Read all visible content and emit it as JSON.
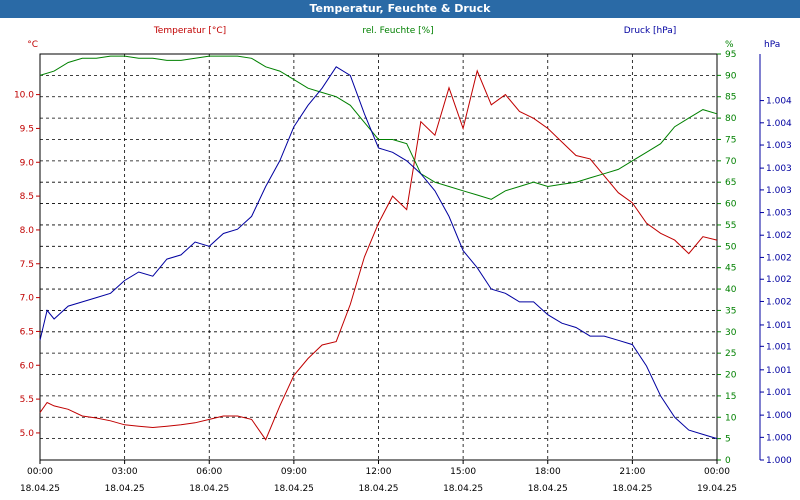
{
  "window": {
    "title": "Temperatur, Feuchte & Druck"
  },
  "chart_data": {
    "type": "line",
    "title": "Temperatur, Feuchte & Druck",
    "grid": true,
    "x_ticks": [
      {
        "time": "00:00",
        "date": "18.04.25"
      },
      {
        "time": "03:00",
        "date": "18.04.25"
      },
      {
        "time": "06:00",
        "date": "18.04.25"
      },
      {
        "time": "09:00",
        "date": "18.04.25"
      },
      {
        "time": "12:00",
        "date": "18.04.25"
      },
      {
        "time": "15:00",
        "date": "18.04.25"
      },
      {
        "time": "18:00",
        "date": "18.04.25"
      },
      {
        "time": "21:00",
        "date": "18.04.25"
      },
      {
        "time": "00:00",
        "date": "19.04.25"
      }
    ],
    "x_range_hours": [
      0,
      24
    ],
    "axes": {
      "temperature": {
        "label": "Temperatur [°C]",
        "unit": "°C",
        "color": "#c00000",
        "range": [
          4.6,
          10.6
        ],
        "ticks": [
          "5.0",
          "5.5",
          "6.0",
          "6.5",
          "7.0",
          "7.5",
          "8.0",
          "8.5",
          "9.0",
          "9.5",
          "10.0"
        ]
      },
      "humidity": {
        "label": "rel. Feuchte [%]",
        "unit": "%",
        "color": "#008000",
        "range": [
          0,
          95
        ],
        "ticks": [
          "0",
          "5",
          "10",
          "15",
          "20",
          "25",
          "30",
          "35",
          "40",
          "45",
          "50",
          "55",
          "60",
          "65",
          "70",
          "75",
          "80",
          "85",
          "90",
          "95"
        ]
      },
      "pressure": {
        "label": "Druck [hPa]",
        "unit": "hPa",
        "color": "#0000a0",
        "ticks": [
          "1.000",
          "1.000",
          "1.000",
          "1.001",
          "1.001",
          "1.001",
          "1.001",
          "1.002",
          "1.002",
          "1.002",
          "1.002",
          "1.003",
          "1.003",
          "1.003",
          "1.003",
          "1.004",
          "1.004"
        ]
      }
    },
    "series": [
      {
        "name": "Temperatur [°C]",
        "axis": "temperature",
        "color": "#c00000",
        "x": [
          0,
          0.25,
          0.5,
          1,
          1.5,
          2,
          2.5,
          3,
          3.5,
          4,
          4.5,
          5,
          5.5,
          6,
          6.5,
          7,
          7.5,
          8,
          8.5,
          9,
          9.5,
          10,
          10.5,
          11,
          11.5,
          12,
          12.5,
          13,
          13.5,
          14,
          14.5,
          15,
          15.5,
          16,
          16.5,
          17,
          17.5,
          18,
          18.5,
          19,
          19.5,
          20,
          20.5,
          21,
          21.5,
          22,
          22.5,
          23,
          23.5,
          24
        ],
        "values": [
          5.3,
          5.45,
          5.4,
          5.35,
          5.25,
          5.22,
          5.18,
          5.12,
          5.1,
          5.08,
          5.1,
          5.12,
          5.15,
          5.2,
          5.25,
          5.25,
          5.2,
          4.9,
          5.4,
          5.85,
          6.1,
          6.3,
          6.35,
          6.9,
          7.6,
          8.1,
          8.5,
          8.3,
          9.6,
          9.4,
          10.1,
          9.5,
          10.35,
          9.85,
          10.0,
          9.75,
          9.65,
          9.5,
          9.3,
          9.1,
          9.05,
          8.8,
          8.55,
          8.4,
          8.1,
          7.95,
          7.85,
          7.65,
          7.9,
          7.85
        ]
      },
      {
        "name": "rel. Feuchte [%]",
        "axis": "humidity",
        "color": "#008000",
        "x": [
          0,
          0.5,
          1,
          1.5,
          2,
          2.5,
          3,
          3.5,
          4,
          4.5,
          5,
          5.5,
          6,
          6.5,
          7,
          7.5,
          8,
          8.5,
          9,
          9.5,
          10,
          10.5,
          11,
          11.5,
          12,
          12.5,
          13,
          13.5,
          14,
          14.5,
          15,
          15.5,
          16,
          16.5,
          17,
          17.5,
          18,
          18.5,
          19,
          19.5,
          20,
          20.5,
          21,
          21.5,
          22,
          22.5,
          23,
          23.5,
          24
        ],
        "values": [
          90,
          91,
          93,
          94,
          94,
          94.5,
          94.5,
          94,
          94,
          93.5,
          93.5,
          94,
          94.5,
          94.5,
          94.5,
          94,
          92,
          91,
          89,
          87,
          86,
          85,
          83,
          79,
          75,
          75,
          74,
          67,
          65,
          64,
          63,
          62,
          61,
          63,
          64,
          65,
          64,
          64.5,
          65,
          66,
          67,
          68,
          70,
          72,
          74,
          78,
          80,
          82,
          81
        ]
      },
      {
        "name": "Druck [hPa]",
        "axis": "pressure",
        "tick_positions": [
          0,
          5.3,
          10.5,
          15.9,
          21.1,
          26.6,
          31.6,
          37.1,
          42.3,
          47.4,
          52.6,
          57.9,
          63.2,
          68.3,
          73.7,
          78.9,
          84.1
        ],
        "color": "#0000a0",
        "x": [
          0,
          0.25,
          0.5,
          1,
          1.5,
          2,
          2.5,
          3,
          3.5,
          4,
          4.5,
          5,
          5.5,
          6,
          6.5,
          7,
          7.5,
          8,
          8.5,
          9,
          9.5,
          10,
          10.5,
          11,
          11.5,
          12,
          12.5,
          13,
          13.5,
          14,
          14.5,
          15,
          15.5,
          16,
          16.5,
          17,
          17.5,
          18,
          18.5,
          19,
          19.5,
          20,
          20.5,
          21,
          21.5,
          22,
          22.5,
          23,
          23.5,
          24
        ],
        "values": [
          28,
          35,
          33,
          36,
          37,
          38,
          39,
          42,
          44,
          43,
          47,
          48,
          51,
          50,
          53,
          54,
          57,
          64,
          70,
          78,
          83,
          87,
          92,
          90,
          81,
          73,
          72,
          70,
          67,
          63,
          57,
          49,
          45,
          40,
          39,
          37,
          37,
          34,
          32,
          31,
          29,
          29,
          28,
          27,
          22,
          15,
          10,
          7,
          6,
          5
        ]
      }
    ]
  }
}
